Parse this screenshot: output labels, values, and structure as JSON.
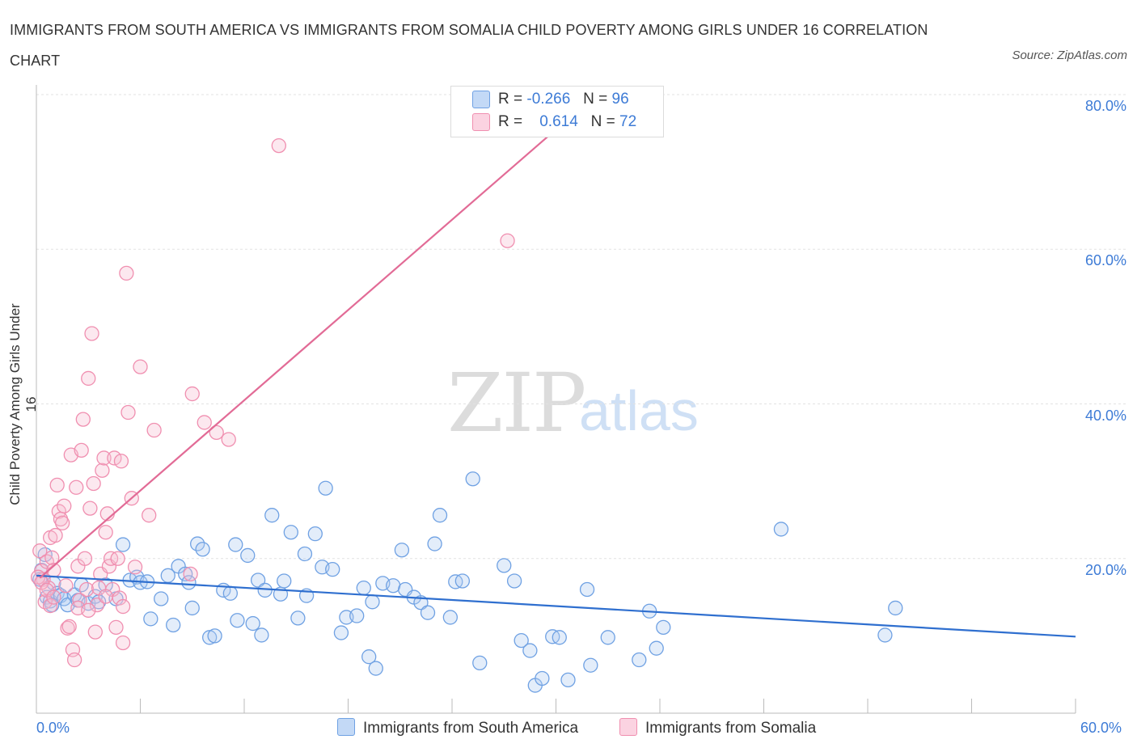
{
  "title": "IMMIGRANTS FROM SOUTH AMERICA VS IMMIGRANTS FROM SOMALIA CHILD POVERTY AMONG GIRLS UNDER 16 CORRELATION CHART",
  "source": "Source: ZipAtlas.com",
  "watermark": {
    "zip": "ZIP",
    "atlas": "atlas"
  },
  "legend": {
    "rows": [
      {
        "r_label": "R =",
        "r_value": "-0.266",
        "n_label": "N =",
        "n_value": "96",
        "color": "#aecbf2"
      },
      {
        "r_label": "R =",
        "r_value": "0.614",
        "n_label": "N =",
        "n_value": "72",
        "color": "#f7bcd0"
      }
    ]
  },
  "bottom_legend": [
    {
      "label": "Immigrants from South America",
      "color": "#aecbf2"
    },
    {
      "label": "Immigrants from Somalia",
      "color": "#f7bcd0"
    }
  ],
  "chart_data": {
    "type": "scatter",
    "title": "IMMIGRANTS FROM SOUTH AMERICA VS IMMIGRANTS FROM SOMALIA CHILD POVERTY AMONG GIRLS UNDER 16 CORRELATION CHART",
    "xlabel": "",
    "ylabel": "Child Poverty Among Girls Under 16",
    "xlim": [
      0,
      60
    ],
    "ylim": [
      0,
      80
    ],
    "x_tick_labels": [
      "0.0%",
      "60.0%"
    ],
    "y_tick_labels": [
      "20.0%",
      "40.0%",
      "60.0%",
      "80.0%"
    ],
    "y_ticks": [
      20,
      40,
      60,
      80
    ],
    "grid": true,
    "series": [
      {
        "name": "Immigrants from South America",
        "color": "#6fa1e3",
        "trend": {
          "x": [
            0,
            60
          ],
          "y": [
            17.8,
            9.9
          ],
          "color": "#2f6fcf"
        },
        "points": [
          [
            0.3,
            18.5
          ],
          [
            0.5,
            20.5
          ],
          [
            0.6,
            15.0
          ],
          [
            0.8,
            14.5
          ],
          [
            1.0,
            16.8
          ],
          [
            1.2,
            15.5
          ],
          [
            1.4,
            15.2
          ],
          [
            1.6,
            14.8
          ],
          [
            1.8,
            14.0
          ],
          [
            2.2,
            15.3
          ],
          [
            2.4,
            14.6
          ],
          [
            2.6,
            16.6
          ],
          [
            3.0,
            14.2
          ],
          [
            3.4,
            15.1
          ],
          [
            3.6,
            14.4
          ],
          [
            4.0,
            16.6
          ],
          [
            4.6,
            14.8
          ],
          [
            5.0,
            21.8
          ],
          [
            5.4,
            17.2
          ],
          [
            5.8,
            17.6
          ],
          [
            6.0,
            16.9
          ],
          [
            6.4,
            17.0
          ],
          [
            6.6,
            12.2
          ],
          [
            7.2,
            14.8
          ],
          [
            7.6,
            17.8
          ],
          [
            7.9,
            11.4
          ],
          [
            8.2,
            19.0
          ],
          [
            8.6,
            18.0
          ],
          [
            8.8,
            16.9
          ],
          [
            9.0,
            13.6
          ],
          [
            9.3,
            21.9
          ],
          [
            9.6,
            21.2
          ],
          [
            10.0,
            9.8
          ],
          [
            10.3,
            10.0
          ],
          [
            10.8,
            15.9
          ],
          [
            11.2,
            15.5
          ],
          [
            11.5,
            21.8
          ],
          [
            11.6,
            12.0
          ],
          [
            12.2,
            20.4
          ],
          [
            12.5,
            11.6
          ],
          [
            12.8,
            17.2
          ],
          [
            13.0,
            10.1
          ],
          [
            13.2,
            15.9
          ],
          [
            13.6,
            25.6
          ],
          [
            14.1,
            15.4
          ],
          [
            14.3,
            17.1
          ],
          [
            14.7,
            23.4
          ],
          [
            15.1,
            12.3
          ],
          [
            15.5,
            20.6
          ],
          [
            15.6,
            15.2
          ],
          [
            16.1,
            23.2
          ],
          [
            16.5,
            18.9
          ],
          [
            16.7,
            29.1
          ],
          [
            17.1,
            18.6
          ],
          [
            17.6,
            10.4
          ],
          [
            17.9,
            12.4
          ],
          [
            18.5,
            12.6
          ],
          [
            18.9,
            16.2
          ],
          [
            19.2,
            7.3
          ],
          [
            19.4,
            14.4
          ],
          [
            19.6,
            5.8
          ],
          [
            20.0,
            16.8
          ],
          [
            20.6,
            16.5
          ],
          [
            21.1,
            21.1
          ],
          [
            21.3,
            16.0
          ],
          [
            21.8,
            15.0
          ],
          [
            22.2,
            14.3
          ],
          [
            22.6,
            13.0
          ],
          [
            23.0,
            21.9
          ],
          [
            23.3,
            25.6
          ],
          [
            23.9,
            12.4
          ],
          [
            24.2,
            17.0
          ],
          [
            24.6,
            17.1
          ],
          [
            25.2,
            30.3
          ],
          [
            25.6,
            6.5
          ],
          [
            27.0,
            19.1
          ],
          [
            27.6,
            17.1
          ],
          [
            28.0,
            9.4
          ],
          [
            28.5,
            8.1
          ],
          [
            28.8,
            3.6
          ],
          [
            29.2,
            4.5
          ],
          [
            29.8,
            9.9
          ],
          [
            30.2,
            9.8
          ],
          [
            30.7,
            4.3
          ],
          [
            31.8,
            16.0
          ],
          [
            32.0,
            6.2
          ],
          [
            33.0,
            9.8
          ],
          [
            34.8,
            6.9
          ],
          [
            35.4,
            13.2
          ],
          [
            35.8,
            8.4
          ],
          [
            36.2,
            11.1
          ],
          [
            43.0,
            23.8
          ],
          [
            49.0,
            10.1
          ],
          [
            49.6,
            13.6
          ],
          [
            0.2,
            17.3
          ],
          [
            0.9,
            14.0
          ]
        ]
      },
      {
        "name": "Immigrants from Somalia",
        "color": "#f08fb0",
        "trend": {
          "x": [
            0.2,
            30
          ],
          "y": [
            17.5,
            75.5
          ],
          "color": "#e26b96"
        },
        "points": [
          [
            0.2,
            21.0
          ],
          [
            0.3,
            18.4
          ],
          [
            0.4,
            17.3
          ],
          [
            0.5,
            14.4
          ],
          [
            0.6,
            19.6
          ],
          [
            0.7,
            16.2
          ],
          [
            0.8,
            22.7
          ],
          [
            0.9,
            20.1
          ],
          [
            1.0,
            18.5
          ],
          [
            1.1,
            23.0
          ],
          [
            1.2,
            29.5
          ],
          [
            1.3,
            26.1
          ],
          [
            1.4,
            25.1
          ],
          [
            1.5,
            24.6
          ],
          [
            1.6,
            26.8
          ],
          [
            1.8,
            11.0
          ],
          [
            1.9,
            11.2
          ],
          [
            2.0,
            33.4
          ],
          [
            2.1,
            8.2
          ],
          [
            2.2,
            6.9
          ],
          [
            2.3,
            29.2
          ],
          [
            2.4,
            19.0
          ],
          [
            2.5,
            14.6
          ],
          [
            2.6,
            34.0
          ],
          [
            2.7,
            38.0
          ],
          [
            2.8,
            20.0
          ],
          [
            2.9,
            16.0
          ],
          [
            3.0,
            43.3
          ],
          [
            3.1,
            26.5
          ],
          [
            3.2,
            49.1
          ],
          [
            3.3,
            29.7
          ],
          [
            3.4,
            10.5
          ],
          [
            3.5,
            14.0
          ],
          [
            3.6,
            16.2
          ],
          [
            3.7,
            18.0
          ],
          [
            3.8,
            31.4
          ],
          [
            3.9,
            33.0
          ],
          [
            4.0,
            23.4
          ],
          [
            4.1,
            25.8
          ],
          [
            4.2,
            19.0
          ],
          [
            4.3,
            20.0
          ],
          [
            4.4,
            16.0
          ],
          [
            4.5,
            33.0
          ],
          [
            4.6,
            11.1
          ],
          [
            4.7,
            20.0
          ],
          [
            4.8,
            14.9
          ],
          [
            4.9,
            32.6
          ],
          [
            5.0,
            9.1
          ],
          [
            5.2,
            56.9
          ],
          [
            5.3,
            38.9
          ],
          [
            5.5,
            27.8
          ],
          [
            5.7,
            18.9
          ],
          [
            6.0,
            44.8
          ],
          [
            6.5,
            25.6
          ],
          [
            6.8,
            36.6
          ],
          [
            8.9,
            18.0
          ],
          [
            9.0,
            41.3
          ],
          [
            9.7,
            37.6
          ],
          [
            10.4,
            36.3
          ],
          [
            11.1,
            35.4
          ],
          [
            14.0,
            73.4
          ],
          [
            27.2,
            61.1
          ],
          [
            0.1,
            17.6
          ],
          [
            0.3,
            16.9
          ],
          [
            0.6,
            15.9
          ],
          [
            0.8,
            13.9
          ],
          [
            1.0,
            15.0
          ],
          [
            1.7,
            16.5
          ],
          [
            2.4,
            13.6
          ],
          [
            3.0,
            13.3
          ],
          [
            4.0,
            15.1
          ],
          [
            5.0,
            13.8
          ]
        ]
      }
    ]
  }
}
